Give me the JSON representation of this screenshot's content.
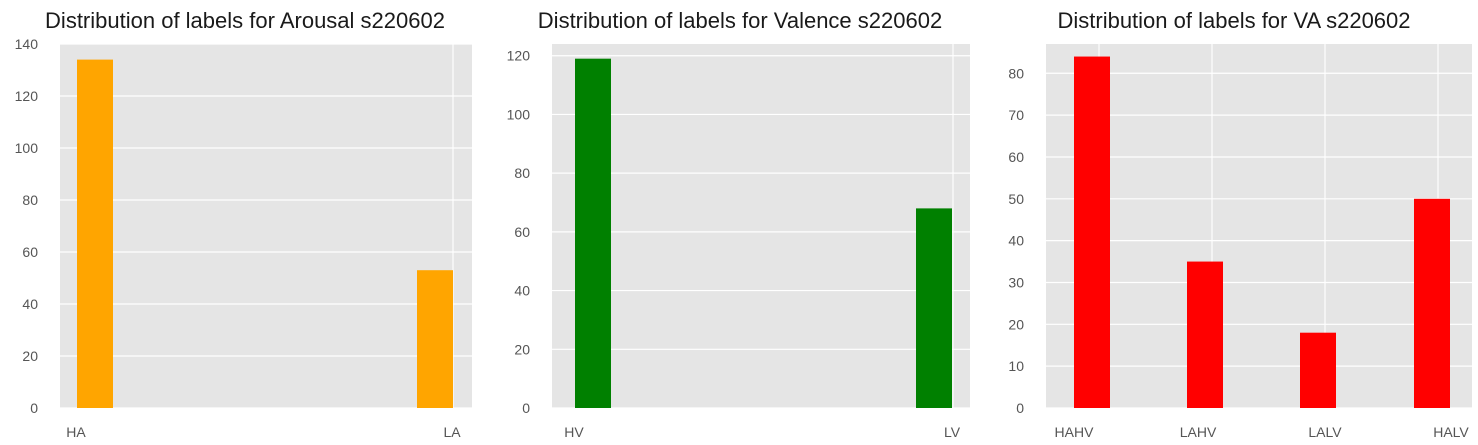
{
  "colors": {
    "plot_background": "#e5e5e5",
    "grid": "#ffffff",
    "arousal_bars": "#ffa500",
    "valence_bars": "#008000",
    "va_bars": "#ff0000"
  },
  "chart_data": [
    {
      "type": "bar",
      "title": "Distribution of labels for Arousal s220602",
      "xlabel": "",
      "ylabel": "",
      "categories": [
        "HA",
        "LA"
      ],
      "values": [
        134,
        53
      ],
      "yticks": [
        "0",
        "20",
        "40",
        "60",
        "80",
        "100",
        "120",
        "140"
      ],
      "ylim": [
        0,
        140
      ],
      "grid": true,
      "color": "#ffa500"
    },
    {
      "type": "bar",
      "title": "Distribution of labels for Valence s220602",
      "xlabel": "",
      "ylabel": "",
      "categories": [
        "HV",
        "LV"
      ],
      "values": [
        119,
        68
      ],
      "yticks": [
        "0",
        "20",
        "40",
        "60",
        "80",
        "100",
        "120"
      ],
      "ylim": [
        0,
        124
      ],
      "grid": true,
      "color": "#008000"
    },
    {
      "type": "bar",
      "title": "Distribution of labels for VA s220602",
      "xlabel": "",
      "ylabel": "",
      "categories": [
        "HAHV",
        "LAHV",
        "LALV",
        "HALV"
      ],
      "values": [
        84,
        35,
        18,
        50
      ],
      "yticks": [
        "0",
        "10",
        "20",
        "30",
        "40",
        "50",
        "60",
        "70",
        "80"
      ],
      "ylim": [
        0,
        87
      ],
      "grid": true,
      "color": "#ff0000"
    }
  ]
}
